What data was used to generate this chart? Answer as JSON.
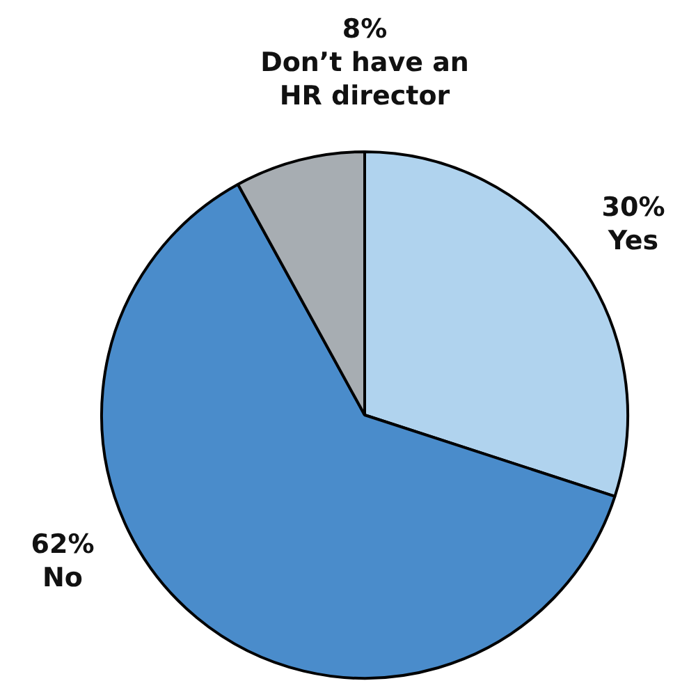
{
  "chart_data": {
    "type": "pie",
    "categories": [
      "Yes",
      "No",
      "Don’t have an\nHR director"
    ],
    "values": [
      30,
      62,
      8
    ],
    "colors": [
      "#b0d3ee",
      "#4a8ccb",
      "#a7adb2"
    ],
    "value_labels": [
      "30%",
      "62%",
      "8%"
    ],
    "legend": false
  }
}
